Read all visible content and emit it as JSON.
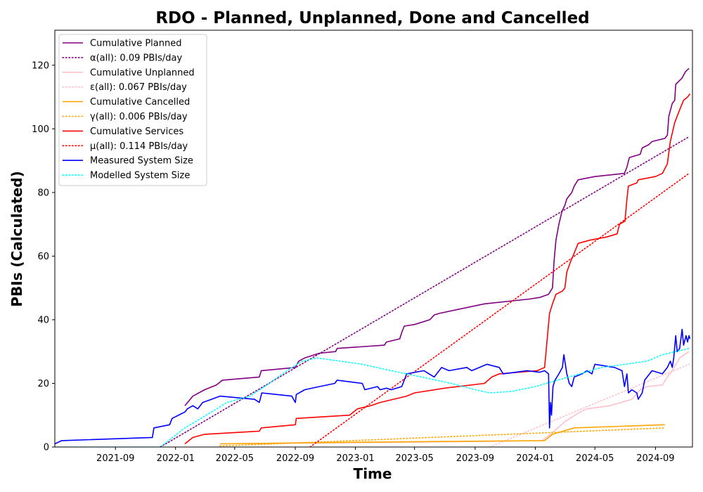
{
  "chart_data": {
    "type": "line",
    "title": "RDO - Planned, Unplanned, Done  and Cancelled",
    "xlabel": "Time",
    "ylabel": "PBIs (Calculated)",
    "xlim": [
      "2021-05-01",
      "2024-11-15"
    ],
    "ylim": [
      0,
      131
    ],
    "grid": false,
    "legend_position": "top-left",
    "x_ticks": [
      "2021-09-01",
      "2022-01-01",
      "2022-05-01",
      "2022-09-01",
      "2023-01-01",
      "2023-05-01",
      "2023-09-01",
      "2024-01-01",
      "2024-05-01",
      "2024-09-01"
    ],
    "x_tick_labels": [
      "2021-09",
      "2022-01",
      "2022-05",
      "2022-09",
      "2023-01",
      "2023-05",
      "2023-09",
      "2024-01",
      "2024-05",
      "2024-09"
    ],
    "y_ticks": [
      0,
      20,
      40,
      60,
      80,
      100,
      120
    ],
    "y_tick_labels": [
      "0",
      "20",
      "40",
      "60",
      "80",
      "100",
      "120"
    ],
    "series": [
      {
        "name": "Cumulative Planned",
        "color": "#800080",
        "style": "solid",
        "points": [
          [
            "2022-01-20",
            13
          ],
          [
            "2022-02-05",
            16
          ],
          [
            "2022-03-01",
            18
          ],
          [
            "2022-03-25",
            19.5
          ],
          [
            "2022-04-06",
            21
          ],
          [
            "2022-06-20",
            22
          ],
          [
            "2022-06-24",
            24
          ],
          [
            "2022-09-01",
            25
          ],
          [
            "2022-09-08",
            27
          ],
          [
            "2022-09-20",
            28
          ],
          [
            "2022-10-20",
            29.5
          ],
          [
            "2022-11-22",
            30
          ],
          [
            "2022-11-25",
            31
          ],
          [
            "2023-03-01",
            32
          ],
          [
            "2023-03-05",
            33
          ],
          [
            "2023-04-01",
            34
          ],
          [
            "2023-04-05",
            36
          ],
          [
            "2023-04-10",
            38
          ],
          [
            "2023-05-01",
            38.5
          ],
          [
            "2023-06-01",
            40
          ],
          [
            "2023-06-10",
            41.5
          ],
          [
            "2023-06-20",
            42
          ],
          [
            "2023-09-20",
            45
          ],
          [
            "2023-12-20",
            46.5
          ],
          [
            "2024-01-10",
            47
          ],
          [
            "2024-01-28",
            48
          ],
          [
            "2024-02-05",
            50
          ],
          [
            "2024-02-08",
            58
          ],
          [
            "2024-02-12",
            65
          ],
          [
            "2024-02-18",
            70
          ],
          [
            "2024-02-24",
            74
          ],
          [
            "2024-03-01",
            76
          ],
          [
            "2024-03-05",
            78
          ],
          [
            "2024-03-15",
            80
          ],
          [
            "2024-03-20",
            82
          ],
          [
            "2024-03-28",
            84
          ],
          [
            "2024-05-01",
            85
          ],
          [
            "2024-06-30",
            86
          ],
          [
            "2024-07-05",
            88
          ],
          [
            "2024-07-10",
            91
          ],
          [
            "2024-08-01",
            92
          ],
          [
            "2024-08-05",
            94
          ],
          [
            "2024-08-18",
            95
          ],
          [
            "2024-08-25",
            96
          ],
          [
            "2024-09-20",
            97
          ],
          [
            "2024-09-25",
            98
          ],
          [
            "2024-09-28",
            104
          ],
          [
            "2024-10-05",
            108
          ],
          [
            "2024-10-10",
            109
          ],
          [
            "2024-10-12",
            114
          ],
          [
            "2024-10-25",
            116
          ],
          [
            "2024-11-01",
            118
          ],
          [
            "2024-11-08",
            119
          ]
        ]
      },
      {
        "name": "α(all): 0.09 PBIs/day",
        "color": "#800080",
        "style": "dotted",
        "points": [
          [
            "2021-12-01",
            0
          ],
          [
            "2024-11-08",
            97.5
          ]
        ]
      },
      {
        "name": "Cumulative Unplanned",
        "color": "#ffc0cb",
        "style": "solid",
        "points": [
          [
            "2022-04-01",
            1
          ],
          [
            "2023-04-01",
            1.5
          ],
          [
            "2023-10-01",
            1.8
          ],
          [
            "2024-01-15",
            2
          ],
          [
            "2024-02-01",
            4
          ],
          [
            "2024-03-01",
            8
          ],
          [
            "2024-04-01",
            11
          ],
          [
            "2024-04-15",
            12
          ],
          [
            "2024-06-01",
            13
          ],
          [
            "2024-07-15",
            15
          ],
          [
            "2024-08-01",
            18
          ],
          [
            "2024-08-15",
            19
          ],
          [
            "2024-09-15",
            19.5
          ],
          [
            "2024-09-25",
            22
          ],
          [
            "2024-10-05",
            24
          ],
          [
            "2024-10-20",
            28
          ],
          [
            "2024-11-08",
            30
          ]
        ]
      },
      {
        "name": "ε(all): 0.067 PBIs/day",
        "color": "#ffc0cb",
        "style": "dotted",
        "points": [
          [
            "2023-10-01",
            0
          ],
          [
            "2024-11-08",
            26
          ]
        ]
      },
      {
        "name": "Cumulative Cancelled",
        "color": "#ffa500",
        "style": "solid",
        "points": [
          [
            "2022-04-01",
            1
          ],
          [
            "2023-01-01",
            1.5
          ],
          [
            "2024-01-20",
            2
          ],
          [
            "2024-02-05",
            4
          ],
          [
            "2024-03-20",
            6
          ],
          [
            "2024-09-20",
            7
          ]
        ]
      },
      {
        "name": "γ(all): 0.006 PBIs/day",
        "color": "#ffa500",
        "style": "dotted",
        "points": [
          [
            "2022-04-01",
            0.3
          ],
          [
            "2024-09-20",
            6
          ]
        ]
      },
      {
        "name": "Cumulative Services",
        "color": "#ff0000",
        "style": "solid",
        "points": [
          [
            "2022-01-20",
            1
          ],
          [
            "2022-02-05",
            3
          ],
          [
            "2022-03-01",
            4
          ],
          [
            "2022-06-20",
            5
          ],
          [
            "2022-06-24",
            6
          ],
          [
            "2022-09-01",
            7
          ],
          [
            "2022-09-03",
            9
          ],
          [
            "2022-12-20",
            10
          ],
          [
            "2023-01-05",
            12
          ],
          [
            "2023-02-01",
            13
          ],
          [
            "2023-02-20",
            14
          ],
          [
            "2023-04-15",
            16
          ],
          [
            "2023-05-01",
            17
          ],
          [
            "2023-07-01",
            18.5
          ],
          [
            "2023-09-20",
            20
          ],
          [
            "2023-10-05",
            22
          ],
          [
            "2023-10-20",
            23
          ],
          [
            "2024-01-05",
            24
          ],
          [
            "2024-01-20",
            25
          ],
          [
            "2024-01-30",
            42
          ],
          [
            "2024-02-05",
            45
          ],
          [
            "2024-02-12",
            48
          ],
          [
            "2024-02-25",
            49
          ],
          [
            "2024-03-01",
            50
          ],
          [
            "2024-03-05",
            55
          ],
          [
            "2024-03-12",
            58
          ],
          [
            "2024-03-20",
            61
          ],
          [
            "2024-03-28",
            64
          ],
          [
            "2024-04-20",
            65
          ],
          [
            "2024-05-25",
            66
          ],
          [
            "2024-06-15",
            67
          ],
          [
            "2024-06-20",
            70
          ],
          [
            "2024-07-01",
            71
          ],
          [
            "2024-07-05",
            78
          ],
          [
            "2024-07-08",
            82
          ],
          [
            "2024-07-25",
            83
          ],
          [
            "2024-07-28",
            84
          ],
          [
            "2024-09-01",
            85
          ],
          [
            "2024-09-15",
            86
          ],
          [
            "2024-09-25",
            89
          ],
          [
            "2024-10-01",
            96
          ],
          [
            "2024-10-10",
            102
          ],
          [
            "2024-10-20",
            106
          ],
          [
            "2024-10-28",
            109
          ],
          [
            "2024-11-05",
            110
          ],
          [
            "2024-11-10",
            111
          ]
        ]
      },
      {
        "name": "μ(all): 0.114 PBIs/day",
        "color": "#ff0000",
        "style": "dotted",
        "points": [
          [
            "2022-10-01",
            0
          ],
          [
            "2024-11-08",
            86
          ]
        ]
      },
      {
        "name": "Measured System Size",
        "color": "#0000ff",
        "style": "solid",
        "points": [
          [
            "2021-05-01",
            1
          ],
          [
            "2021-05-15",
            2
          ],
          [
            "2021-11-15",
            3
          ],
          [
            "2021-11-18",
            6
          ],
          [
            "2021-12-20",
            7
          ],
          [
            "2021-12-25",
            9
          ],
          [
            "2022-01-20",
            11
          ],
          [
            "2022-01-25",
            12
          ],
          [
            "2022-02-05",
            13
          ],
          [
            "2022-02-15",
            12
          ],
          [
            "2022-02-25",
            14
          ],
          [
            "2022-03-15",
            15
          ],
          [
            "2022-04-01",
            16
          ],
          [
            "2022-06-10",
            15
          ],
          [
            "2022-06-20",
            14
          ],
          [
            "2022-06-25",
            17
          ],
          [
            "2022-08-25",
            16
          ],
          [
            "2022-09-01",
            14
          ],
          [
            "2022-09-03",
            16.5
          ],
          [
            "2022-09-20",
            18
          ],
          [
            "2022-10-20",
            19
          ],
          [
            "2022-11-20",
            20
          ],
          [
            "2022-11-25",
            21
          ],
          [
            "2022-12-20",
            20.5
          ],
          [
            "2023-01-15",
            20
          ],
          [
            "2023-01-20",
            18
          ],
          [
            "2023-02-15",
            19
          ],
          [
            "2023-02-20",
            18
          ],
          [
            "2023-03-05",
            18.5
          ],
          [
            "2023-03-15",
            18
          ],
          [
            "2023-04-05",
            19
          ],
          [
            "2023-04-15",
            23
          ],
          [
            "2023-05-20",
            24
          ],
          [
            "2023-06-10",
            22
          ],
          [
            "2023-06-25",
            25
          ],
          [
            "2023-07-10",
            24
          ],
          [
            "2023-08-15",
            25
          ],
          [
            "2023-08-25",
            24
          ],
          [
            "2023-09-25",
            26
          ],
          [
            "2023-10-20",
            25
          ],
          [
            "2023-10-28",
            23
          ],
          [
            "2023-12-15",
            24
          ],
          [
            "2024-01-10",
            23.5
          ],
          [
            "2024-01-20",
            24
          ],
          [
            "2024-01-28",
            23
          ],
          [
            "2024-01-30",
            6
          ],
          [
            "2024-02-01",
            14
          ],
          [
            "2024-02-03",
            10
          ],
          [
            "2024-02-06",
            19
          ],
          [
            "2024-02-10",
            21
          ],
          [
            "2024-02-18",
            23
          ],
          [
            "2024-02-25",
            25
          ],
          [
            "2024-02-28",
            29
          ],
          [
            "2024-03-05",
            23
          ],
          [
            "2024-03-10",
            20
          ],
          [
            "2024-03-15",
            19
          ],
          [
            "2024-03-20",
            22
          ],
          [
            "2024-04-05",
            23
          ],
          [
            "2024-04-15",
            24
          ],
          [
            "2024-04-25",
            23
          ],
          [
            "2024-05-01",
            26
          ],
          [
            "2024-06-10",
            25
          ],
          [
            "2024-06-25",
            24
          ],
          [
            "2024-06-30",
            19
          ],
          [
            "2024-07-05",
            23
          ],
          [
            "2024-07-08",
            17
          ],
          [
            "2024-07-15",
            18
          ],
          [
            "2024-07-25",
            17
          ],
          [
            "2024-07-28",
            15
          ],
          [
            "2024-08-05",
            17
          ],
          [
            "2024-08-10",
            21
          ],
          [
            "2024-08-25",
            24
          ],
          [
            "2024-09-15",
            23
          ],
          [
            "2024-09-25",
            25
          ],
          [
            "2024-10-01",
            27
          ],
          [
            "2024-10-05",
            25
          ],
          [
            "2024-10-08",
            28
          ],
          [
            "2024-10-12",
            35
          ],
          [
            "2024-10-15",
            30
          ],
          [
            "2024-10-20",
            31
          ],
          [
            "2024-10-25",
            37
          ],
          [
            "2024-10-28",
            32
          ],
          [
            "2024-11-02",
            35
          ],
          [
            "2024-11-05",
            33
          ],
          [
            "2024-11-08",
            35
          ],
          [
            "2024-11-10",
            34
          ]
        ]
      },
      {
        "name": "Modelled System Size",
        "color": "#00ffff",
        "style": "dotted",
        "points": [
          [
            "2021-05-01",
            0
          ],
          [
            "2021-12-01",
            0
          ],
          [
            "2022-01-20",
            6
          ],
          [
            "2022-03-15",
            11
          ],
          [
            "2022-04-15",
            14
          ],
          [
            "2022-06-01",
            16
          ],
          [
            "2022-07-01",
            19
          ],
          [
            "2022-08-15",
            24
          ],
          [
            "2022-09-15",
            27
          ],
          [
            "2022-10-15",
            28
          ],
          [
            "2022-12-01",
            27
          ],
          [
            "2023-01-15",
            26
          ],
          [
            "2023-03-15",
            24
          ],
          [
            "2023-05-15",
            22
          ],
          [
            "2023-07-15",
            20
          ],
          [
            "2023-09-01",
            18
          ],
          [
            "2023-10-01",
            17
          ],
          [
            "2023-11-15",
            17.5
          ],
          [
            "2024-01-01",
            19
          ],
          [
            "2024-02-15",
            21
          ],
          [
            "2024-04-01",
            23
          ],
          [
            "2024-05-15",
            25
          ],
          [
            "2024-07-01",
            26
          ],
          [
            "2024-08-15",
            27
          ],
          [
            "2024-09-15",
            29
          ],
          [
            "2024-11-08",
            31
          ]
        ]
      }
    ]
  }
}
